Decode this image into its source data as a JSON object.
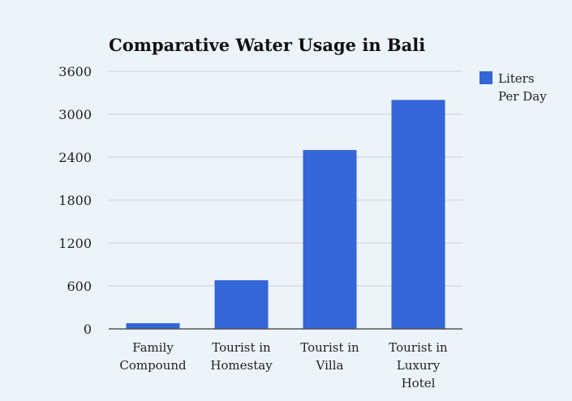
{
  "chart_data": {
    "type": "bar",
    "title": "Comparative Water Usage in Bali",
    "xlabel": "",
    "ylabel": "",
    "categories": [
      "Family Compound",
      "Tourist in Homestay",
      "Tourist in Villa",
      "Tourist in Luxury Hotel"
    ],
    "category_lines": [
      [
        "Family",
        "Compound"
      ],
      [
        "Tourist in",
        "Homestay"
      ],
      [
        "Tourist in",
        "Villa"
      ],
      [
        "Tourist in",
        "Luxury",
        "Hotel"
      ]
    ],
    "series": [
      {
        "name": "Liters Per Day",
        "legend_lines": [
          "Liters",
          "Per Day"
        ],
        "color": "#3366d6",
        "values": [
          80,
          680,
          2500,
          3200
        ]
      }
    ],
    "ylim": [
      0,
      3600
    ],
    "yticks": [
      0,
      600,
      1200,
      1800,
      2400,
      3000,
      3600
    ],
    "grid": true,
    "legend_position": "right"
  }
}
